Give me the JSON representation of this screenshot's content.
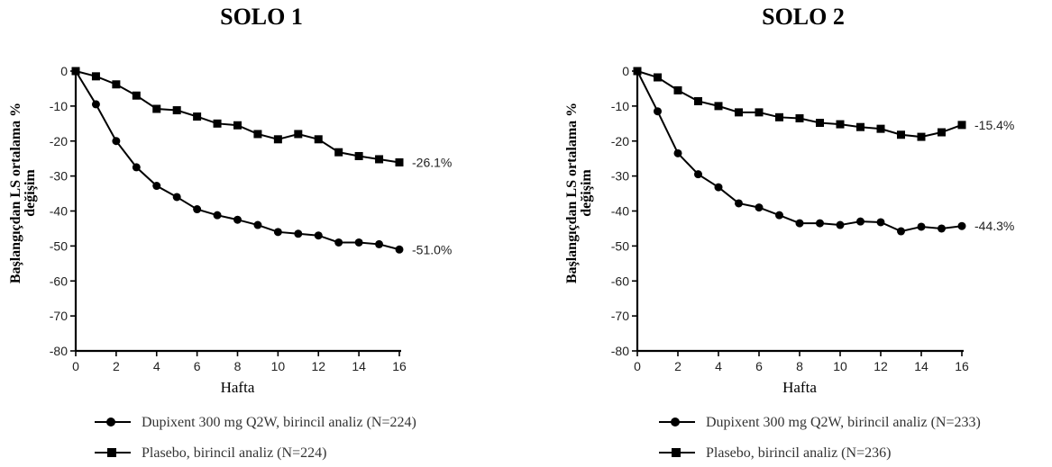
{
  "chart_data": [
    {
      "type": "line",
      "title": "SOLO 1",
      "ylabel_line1": "Başlangıçdan LS ortalama %",
      "ylabel_line2": "değişim",
      "xlabel": "Hafta",
      "xlim": [
        0,
        16
      ],
      "ylim": [
        -80,
        0
      ],
      "xticks": [
        0,
        2,
        4,
        6,
        8,
        10,
        12,
        14,
        16
      ],
      "yticks": [
        0,
        -10,
        -20,
        -30,
        -40,
        -50,
        -60,
        -70,
        -80
      ],
      "x": [
        0,
        1,
        2,
        3,
        4,
        5,
        6,
        7,
        8,
        9,
        10,
        11,
        12,
        13,
        14,
        15,
        16
      ],
      "series": [
        {
          "name": "Dupixent 300 mg Q2W, birincil analiz (N=224)",
          "marker": "circle",
          "values": [
            0,
            -9.5,
            -20,
            -27.5,
            -32.8,
            -36,
            -39.5,
            -41.2,
            -42.5,
            -44,
            -46,
            -46.5,
            -47,
            -49,
            -49,
            -49.5,
            -51
          ],
          "end_label": "-51.0%"
        },
        {
          "name": "Plasebo, birincil analiz (N=224)",
          "marker": "square",
          "values": [
            0,
            -1.5,
            -3.8,
            -7,
            -10.8,
            -11.2,
            -13,
            -15,
            -15.5,
            -18,
            -19.5,
            -18,
            -19.5,
            -23.2,
            -24.3,
            -25.2,
            -26.1
          ],
          "end_label": "-26.1%"
        }
      ]
    },
    {
      "type": "line",
      "title": "SOLO 2",
      "ylabel_line1": "Başlangıçdan LS ortalama %",
      "ylabel_line2": "değişim",
      "xlabel": "Hafta",
      "xlim": [
        0,
        16
      ],
      "ylim": [
        -80,
        0
      ],
      "xticks": [
        0,
        2,
        4,
        6,
        8,
        10,
        12,
        14,
        16
      ],
      "yticks": [
        0,
        -10,
        -20,
        -30,
        -40,
        -50,
        -60,
        -70,
        -80
      ],
      "x": [
        0,
        1,
        2,
        3,
        4,
        5,
        6,
        7,
        8,
        9,
        10,
        11,
        12,
        13,
        14,
        15,
        16
      ],
      "series": [
        {
          "name": "Dupixent 300 mg Q2W, birincil analiz (N=233)",
          "marker": "circle",
          "values": [
            0,
            -11.5,
            -23.5,
            -29.5,
            -33.2,
            -37.8,
            -39,
            -41.2,
            -43.5,
            -43.5,
            -44,
            -43,
            -43.2,
            -45.8,
            -44.5,
            -45,
            -44.3
          ],
          "end_label": "-44.3%"
        },
        {
          "name": "Plasebo, birincil analiz (N=236)",
          "marker": "square",
          "values": [
            0,
            -1.8,
            -5.5,
            -8.6,
            -10,
            -11.8,
            -11.8,
            -13.2,
            -13.5,
            -14.8,
            -15.2,
            -16,
            -16.5,
            -18.2,
            -18.8,
            -17.5,
            -15.4
          ],
          "end_label": "-15.4%"
        }
      ]
    }
  ]
}
